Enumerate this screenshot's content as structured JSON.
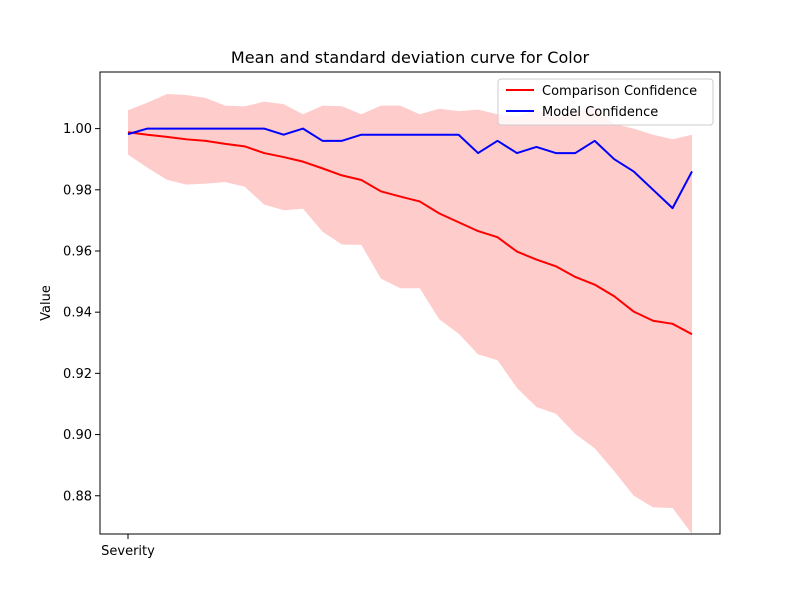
{
  "chart_data": {
    "type": "line",
    "title": "Mean and standard deviation curve for Color",
    "xlabel": "",
    "ylabel": "Value",
    "x_tick_labels": [
      "Severity"
    ],
    "ylim": [
      0.8675,
      1.0185
    ],
    "y_ticks": [
      0.88,
      0.9,
      0.92,
      0.94,
      0.96,
      0.98,
      1.0
    ],
    "y_tick_labels": [
      "0.88",
      "0.90",
      "0.92",
      "0.94",
      "0.96",
      "0.98",
      "1.00"
    ],
    "grid": false,
    "legend_position": "upper right",
    "x": [
      0,
      1,
      2,
      3,
      4,
      5,
      6,
      7,
      8,
      9,
      10,
      11,
      12,
      13,
      14,
      15,
      16,
      17,
      18,
      19,
      20,
      21,
      22,
      23,
      24,
      25,
      26,
      27,
      28,
      29
    ],
    "series": [
      {
        "name": "Comparison Confidence",
        "color": "#ff0000",
        "values": [
          0.9988,
          0.998,
          0.9973,
          0.9965,
          0.996,
          0.995,
          0.9942,
          0.992,
          0.9907,
          0.9892,
          0.987,
          0.9847,
          0.9832,
          0.9795,
          0.9778,
          0.9762,
          0.9723,
          0.9694,
          0.9665,
          0.9645,
          0.9598,
          0.9572,
          0.955,
          0.9515,
          0.949,
          0.9452,
          0.9402,
          0.9372,
          0.9362,
          0.9328
        ],
        "band_color": "#ff0000",
        "band_opacity": 0.2,
        "upper": [
          1.006,
          1.0085,
          1.0113,
          1.011,
          1.01,
          1.0075,
          1.0073,
          1.0088,
          1.008,
          1.0047,
          1.0075,
          1.0073,
          1.0047,
          1.0075,
          1.0075,
          1.0047,
          1.0065,
          1.0057,
          1.0062,
          1.0047,
          1.004,
          1.006,
          1.004,
          1.0055,
          1.007,
          1.0015,
          1.0,
          0.998,
          0.9965,
          0.998
        ],
        "lower": [
          0.9915,
          0.9872,
          0.9833,
          0.9817,
          0.982,
          0.9825,
          0.981,
          0.9752,
          0.9733,
          0.9738,
          0.9663,
          0.9621,
          0.962,
          0.951,
          0.9478,
          0.9478,
          0.9377,
          0.933,
          0.9262,
          0.9243,
          0.9152,
          0.909,
          0.9068,
          0.9002,
          0.8955,
          0.888,
          0.88,
          0.8762,
          0.876,
          0.8675
        ]
      },
      {
        "name": "Model Confidence",
        "color": "#0000ff",
        "values": [
          0.9982,
          1.0,
          1.0,
          1.0,
          1.0,
          1.0,
          1.0,
          1.0,
          0.998,
          1.0,
          0.996,
          0.996,
          0.998,
          0.998,
          0.998,
          0.998,
          0.998,
          0.998,
          0.992,
          0.996,
          0.992,
          0.994,
          0.992,
          0.992,
          0.996,
          0.99,
          0.986,
          0.98,
          0.974,
          0.986
        ]
      }
    ]
  }
}
